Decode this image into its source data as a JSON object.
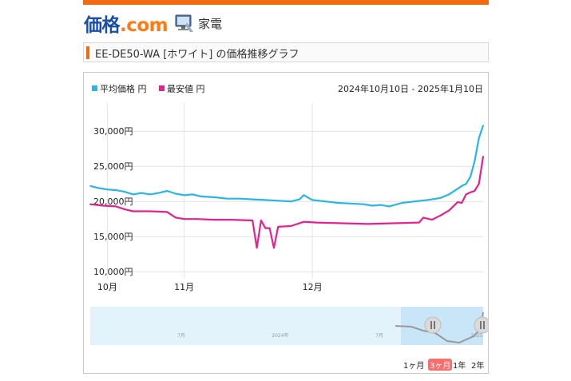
{
  "site": {
    "logo_main": "価格",
    "logo_com": ".com",
    "category": "家電"
  },
  "page_title": "EE-DE50-WA [ホワイト] の価格推移グラフ",
  "legend": [
    {
      "label": "平均価格 円",
      "color": "#2ab5e8"
    },
    {
      "label": "最安値 円",
      "color": "#e5208f"
    }
  ],
  "date_range": "2024年10月10日 - 2025年1月10日",
  "navigator": {
    "labels": [
      "7月",
      "2024年",
      "7月",
      "2025"
    ]
  },
  "range_buttons": [
    "1ヶ月",
    "3ヶ月",
    "1年",
    "2年"
  ],
  "active_range": "3ヶ月",
  "chart_data": {
    "type": "line",
    "x_tick_labels": [
      "10月",
      "11月",
      "12月"
    ],
    "x_tick_dates": [
      "2024-10-14",
      "2024-11-01",
      "2024-12-01"
    ],
    "y_tick_labels": [
      "10,000円",
      "15,000円",
      "20,000円",
      "25,000円",
      "30,000円"
    ],
    "y_ticks": [
      10000,
      15000,
      20000,
      25000,
      30000
    ],
    "ylim": [
      9000,
      34000
    ],
    "xlim": [
      "2024-10-10",
      "2025-01-10"
    ],
    "grid": true,
    "legend_position": "top-left",
    "series": [
      {
        "name": "平均価格 円",
        "color": "#2ab5e8",
        "points": [
          [
            "2024-10-10",
            22200
          ],
          [
            "2024-10-12",
            21900
          ],
          [
            "2024-10-14",
            21700
          ],
          [
            "2024-10-16",
            21600
          ],
          [
            "2024-10-18",
            21400
          ],
          [
            "2024-10-20",
            21000
          ],
          [
            "2024-10-22",
            21200
          ],
          [
            "2024-10-24",
            21000
          ],
          [
            "2024-10-26",
            21200
          ],
          [
            "2024-10-28",
            21500
          ],
          [
            "2024-10-30",
            21100
          ],
          [
            "2024-11-01",
            20900
          ],
          [
            "2024-11-03",
            21000
          ],
          [
            "2024-11-05",
            20700
          ],
          [
            "2024-11-08",
            20600
          ],
          [
            "2024-11-11",
            20400
          ],
          [
            "2024-11-14",
            20400
          ],
          [
            "2024-11-17",
            20300
          ],
          [
            "2024-11-20",
            20200
          ],
          [
            "2024-11-23",
            20100
          ],
          [
            "2024-11-26",
            20000
          ],
          [
            "2024-11-28",
            20300
          ],
          [
            "2024-11-29",
            20900
          ],
          [
            "2024-12-01",
            20200
          ],
          [
            "2024-12-04",
            20000
          ],
          [
            "2024-12-07",
            19800
          ],
          [
            "2024-12-10",
            19700
          ],
          [
            "2024-12-13",
            19600
          ],
          [
            "2024-12-15",
            19400
          ],
          [
            "2024-12-17",
            19500
          ],
          [
            "2024-12-19",
            19300
          ],
          [
            "2024-12-22",
            19800
          ],
          [
            "2024-12-25",
            20000
          ],
          [
            "2024-12-28",
            20200
          ],
          [
            "2024-12-31",
            20500
          ],
          [
            "2025-01-02",
            21000
          ],
          [
            "2025-01-04",
            21800
          ],
          [
            "2025-01-05",
            22200
          ],
          [
            "2025-01-06",
            22500
          ],
          [
            "2025-01-07",
            23500
          ],
          [
            "2025-01-08",
            25700
          ],
          [
            "2025-01-09",
            29000
          ],
          [
            "2025-01-10",
            30800
          ]
        ]
      },
      {
        "name": "最安値 円",
        "color": "#e5208f",
        "points": [
          [
            "2024-10-10",
            19600
          ],
          [
            "2024-10-13",
            19400
          ],
          [
            "2024-10-16",
            19300
          ],
          [
            "2024-10-18",
            18900
          ],
          [
            "2024-10-20",
            18600
          ],
          [
            "2024-10-24",
            18600
          ],
          [
            "2024-10-28",
            18500
          ],
          [
            "2024-10-30",
            17700
          ],
          [
            "2024-11-01",
            17500
          ],
          [
            "2024-11-04",
            17500
          ],
          [
            "2024-11-08",
            17400
          ],
          [
            "2024-11-12",
            17400
          ],
          [
            "2024-11-17",
            17300
          ],
          [
            "2024-11-18",
            13400
          ],
          [
            "2024-11-19",
            17300
          ],
          [
            "2024-11-20",
            16200
          ],
          [
            "2024-11-21",
            16200
          ],
          [
            "2024-11-22",
            13400
          ],
          [
            "2024-11-23",
            16400
          ],
          [
            "2024-11-26",
            16500
          ],
          [
            "2024-11-29",
            17100
          ],
          [
            "2024-12-02",
            17000
          ],
          [
            "2024-12-08",
            16900
          ],
          [
            "2024-12-14",
            16800
          ],
          [
            "2024-12-20",
            16900
          ],
          [
            "2024-12-26",
            17000
          ],
          [
            "2024-12-27",
            17700
          ],
          [
            "2024-12-29",
            17400
          ],
          [
            "2024-12-31",
            18000
          ],
          [
            "2025-01-02",
            18700
          ],
          [
            "2025-01-03",
            19300
          ],
          [
            "2025-01-04",
            19900
          ],
          [
            "2025-01-05",
            19800
          ],
          [
            "2025-01-06",
            21000
          ],
          [
            "2025-01-07",
            21300
          ],
          [
            "2025-01-08",
            21500
          ],
          [
            "2025-01-09",
            22500
          ],
          [
            "2025-01-10",
            26400
          ]
        ]
      }
    ]
  }
}
